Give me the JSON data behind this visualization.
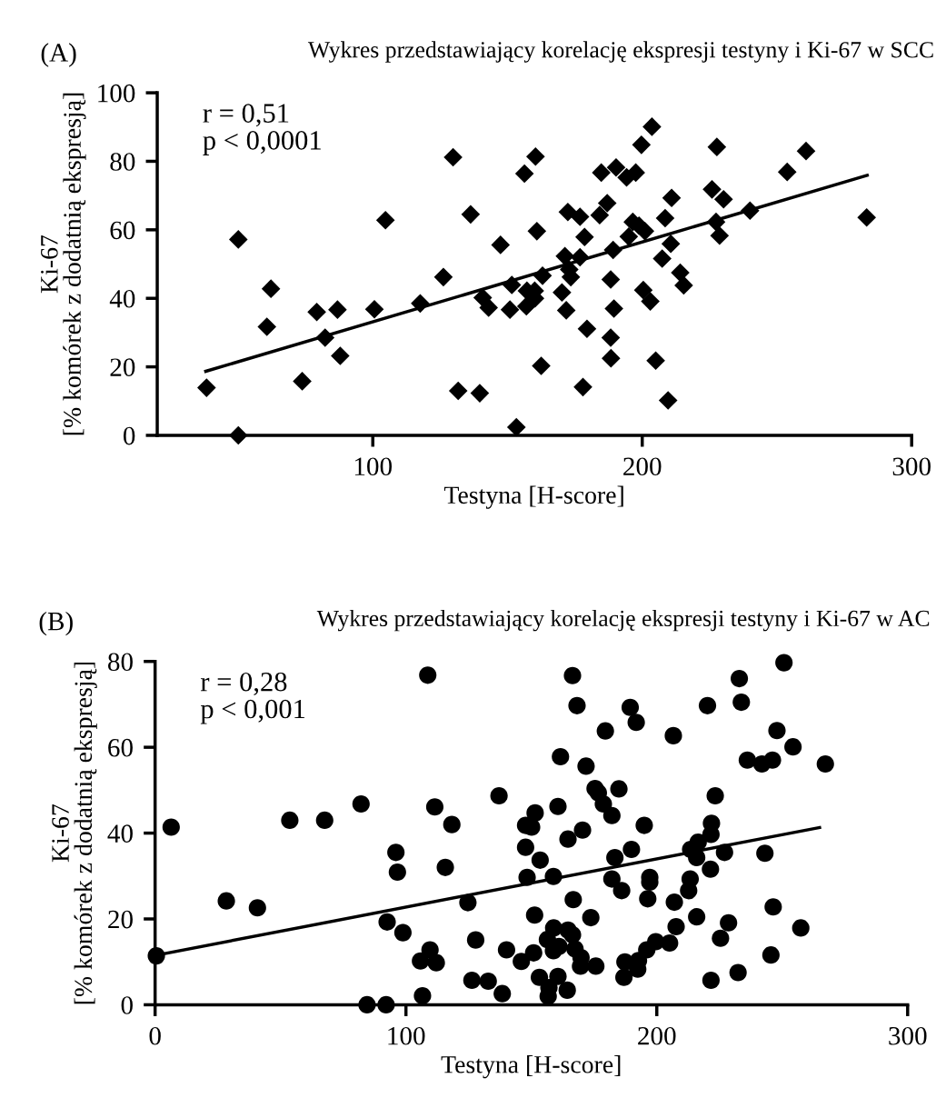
{
  "chart_data": [
    {
      "type": "scatter",
      "title": "Wykres przedstawiający korelację ekspresji testyny i Ki-67 w SCC",
      "xlabel": "Testyna [H-score]",
      "ylabel": "Ki-67\n[% komórek z dodatnią ekspresją]",
      "annotations": [
        "(A)",
        "r = 0,51\np < 0,0001"
      ],
      "xlim": [
        20,
        300
      ],
      "xticks": [
        100,
        200,
        300
      ],
      "ylim": [
        0,
        100
      ],
      "yticks": [
        0,
        20,
        40,
        60,
        80,
        100
      ],
      "grid": false,
      "legend": false,
      "series": [
        {
          "type": "scatter",
          "color": "#000000",
          "marker": "diamond",
          "x": [
            38.3,
            50.1,
            50.1,
            62.2,
            60.7,
            73.8,
            79.2,
            82.3,
            86.9,
            87.9,
            100.6,
            104.7,
            117.6,
            126.2,
            129.8,
            131.7,
            136.3,
            139.7,
            140.8,
            143.0,
            147.4,
            150.9,
            151.6,
            153.3,
            156.3,
            160.4,
            157.0,
            157.2,
            160.1,
            160.2,
            163.0,
            160.9,
            162.5,
            170.2,
            171.8,
            171.3,
            172.4,
            172.9,
            173.5,
            176.9,
            176.9,
            178.6,
            178.0,
            179.5,
            184.8,
            184.2,
            187.0,
            188.3,
            189.2,
            189.5,
            188.3,
            188.4,
            190.3,
            194.2,
            197.6,
            195.0,
            196.5,
            198.8,
            201.0,
            199.7,
            203.6,
            200.4,
            203.0,
            205.0,
            207.4,
            208.5,
            210.6,
            210.9,
            209.6,
            214.1,
            215.4,
            225.9,
            230.2,
            227.7,
            227.4,
            228.7,
            240.0,
            253.8,
            260.8,
            283.3
          ],
          "values": [
            13.9,
            0,
            57.2,
            42.8,
            31.7,
            15.8,
            36.0,
            28.5,
            36.7,
            23.2,
            36.8,
            62.8,
            38.5,
            46.2,
            81.2,
            13.0,
            64.5,
            12.3,
            40.2,
            37.3,
            55.6,
            36.7,
            43.9,
            2.4,
            76.4,
            81.4,
            37.7,
            42.2,
            42.2,
            40.0,
            46.6,
            59.6,
            20.3,
            41.7,
            36.5,
            52.3,
            65.2,
            48.4,
            46.2,
            63.8,
            52.0,
            57.9,
            14.1,
            31.1,
            76.7,
            64.3,
            67.8,
            45.5,
            54.1,
            37.0,
            28.5,
            22.5,
            78.2,
            75.3,
            76.7,
            58.0,
            62.3,
            61.2,
            59.6,
            84.8,
            90.1,
            42.4,
            39.1,
            21.8,
            51.6,
            63.4,
            55.9,
            69.3,
            10.2,
            47.5,
            43.8,
            71.8,
            68.9,
            84.2,
            62.3,
            58.3,
            65.6,
            76.9,
            83.0,
            63.6
          ]
        },
        {
          "type": "line",
          "color": "#000000",
          "marker": "none",
          "line_style": "solid",
          "x": [
            38.0,
            283.5
          ],
          "values": [
            18.7,
            75.9
          ]
        }
      ]
    },
    {
      "type": "scatter",
      "title": "Wykres przedstawiający korelację ekspresji testyny i Ki-67 w AC",
      "xlabel": "Testyna [H-score]",
      "ylabel": "Ki-67\n[% komórek z dodatnią ekspresją]",
      "annotations": [
        "(B)",
        "r = 0,28\np < 0,001"
      ],
      "xlim": [
        0,
        300
      ],
      "xticks": [
        0,
        100,
        200,
        300
      ],
      "ylim": [
        0,
        80
      ],
      "yticks": [
        0,
        20,
        40,
        60,
        80
      ],
      "grid": false,
      "legend": false,
      "series": [
        {
          "type": "scatter",
          "color": "#000000",
          "marker": "circle",
          "x": [
            6.4,
            108.7,
            53.7,
            67.6,
            82.1,
            111.5,
            118.3,
            137.1,
            96.0,
            96.6,
            115.7,
            28.4,
            40.8,
            0.5,
            124.7,
            92.5,
            98.8,
            109.6,
            105.8,
            112.1,
            106.6,
            84.5,
            92.1,
            127.8,
            126.3,
            132.8,
            138.4,
            140.1,
            166.4,
            168.2,
            189.4,
            191.8,
            179.5,
            206.6,
            220.2,
            232.9,
            233.7,
            250.7,
            247.9,
            254.3,
            236.1,
            241.9,
            246.1,
            267.2,
            161.6,
            171.8,
            175.4,
            176.7,
            178.7,
            184.9,
            182.1,
            160.6,
            151.5,
            147.7,
            150.1,
            195.0,
            223.3,
            221.8,
            221.6,
            170.4,
            164.6,
            147.7,
            153.5,
            189.9,
            216.5,
            213.5,
            215.9,
            227.0,
            243.1,
            183.3,
            221.4,
            148.3,
            158.8,
            182.1,
            197.2,
            197.2,
            186.0,
            213.3,
            212.7,
            166.7,
            196.4,
            207.0,
            246.4,
            151.3,
            173.7,
            215.9,
            228.6,
            257.4,
            158.9,
            164.6,
            166.4,
            207.7,
            156.4,
            161.0,
            158.8,
            150.9,
            146.0,
            167.4,
            169.8,
            169.6,
            175.7,
            199.6,
            196.0,
            205.1,
            225.4,
            187.3,
            192.7,
            192.4,
            186.9,
            153.2,
            160.6,
            157.0,
            156.7,
            164.3,
            245.5,
            232.4,
            221.6
          ],
          "values": [
            41.4,
            76.8,
            43.0,
            43.0,
            46.8,
            46.1,
            42.0,
            48.7,
            35.5,
            30.9,
            32.0,
            24.2,
            22.6,
            11.4,
            23.8,
            19.3,
            16.8,
            12.8,
            10.2,
            9.8,
            2.1,
            0,
            0,
            15.1,
            5.7,
            5.5,
            2.6,
            12.8,
            76.7,
            69.7,
            69.3,
            65.8,
            63.8,
            62.7,
            69.7,
            76.0,
            70.5,
            79.7,
            63.9,
            60.1,
            57.0,
            56.1,
            57.0,
            56.1,
            57.8,
            55.6,
            50.4,
            49.4,
            46.8,
            50.3,
            44.1,
            46.2,
            44.7,
            41.8,
            41.4,
            41.8,
            48.7,
            42.3,
            39.7,
            40.7,
            38.6,
            36.7,
            33.7,
            36.2,
            37.9,
            36.2,
            34.3,
            35.5,
            35.3,
            34.3,
            31.6,
            29.7,
            29.9,
            29.3,
            29.7,
            28.6,
            26.6,
            29.3,
            26.6,
            24.5,
            24.7,
            23.9,
            22.8,
            20.9,
            20.3,
            20.5,
            19.1,
            17.9,
            17.9,
            17.4,
            16.3,
            18.2,
            15.2,
            13.6,
            12.6,
            12.1,
            10.1,
            13.0,
            11.0,
            9.0,
            9.0,
            14.7,
            12.8,
            14.4,
            15.5,
            10.0,
            10.3,
            8.3,
            6.4,
            6.4,
            6.6,
            4.0,
            2.0,
            3.4,
            11.6,
            7.5,
            5.7
          ]
        },
        {
          "type": "line",
          "color": "#000000",
          "marker": "none",
          "line_style": "solid",
          "x": [
            0,
            264.9
          ],
          "values": [
            11.5,
            41.3
          ]
        }
      ]
    }
  ]
}
